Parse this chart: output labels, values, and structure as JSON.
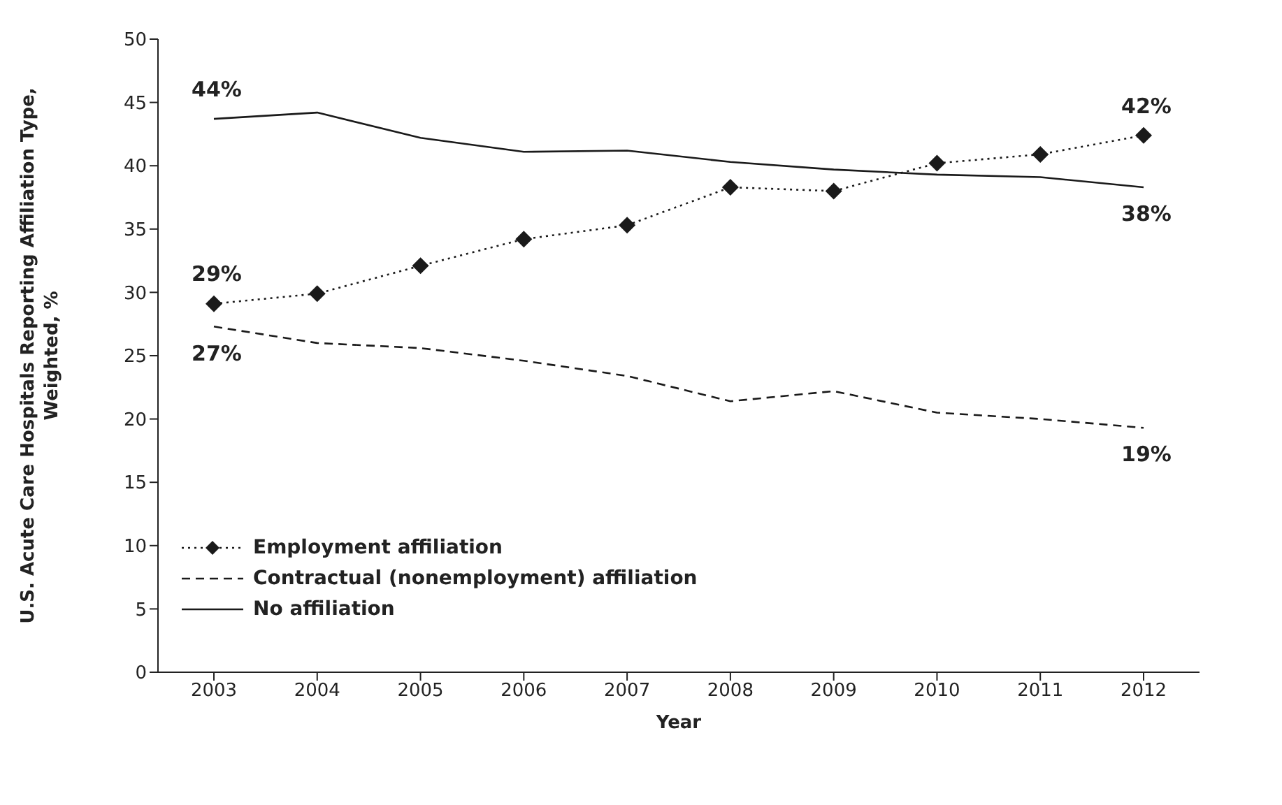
{
  "chart_data": {
    "type": "line",
    "xlabel": "Year",
    "ylabel": "U.S. Acute Care Hospitals Reporting Affiliation Type, Weighted, %",
    "categories": [
      "2003",
      "2004",
      "2005",
      "2006",
      "2007",
      "2008",
      "2009",
      "2010",
      "2011",
      "2012"
    ],
    "series": [
      {
        "name": "Employment affiliation",
        "color": "#1a1a1a",
        "line_style": "dotted",
        "marker": "diamond",
        "values": [
          29.1,
          29.9,
          32.1,
          34.2,
          35.3,
          38.3,
          38.0,
          40.2,
          40.9,
          42.4
        ]
      },
      {
        "name": "Contractual (nonemployment) affiliation",
        "color": "#1a1a1a",
        "line_style": "dashed",
        "marker": "none",
        "values": [
          27.3,
          26.0,
          25.6,
          24.6,
          23.4,
          21.4,
          22.2,
          20.5,
          20.0,
          19.3
        ]
      },
      {
        "name": "No affiliation",
        "color": "#1a1a1a",
        "line_style": "solid",
        "marker": "none",
        "values": [
          43.7,
          44.2,
          42.2,
          41.1,
          41.2,
          40.3,
          39.7,
          39.3,
          39.1,
          38.3
        ]
      }
    ],
    "annotations": [
      {
        "text": "44%",
        "x": "2003",
        "y": 43.7
      },
      {
        "text": "29%",
        "x": "2003",
        "y": 29.1
      },
      {
        "text": "27%",
        "x": "2003",
        "y": 27.3
      },
      {
        "text": "42%",
        "x": "2012",
        "y": 42.4
      },
      {
        "text": "38%",
        "x": "2012",
        "y": 38.3
      },
      {
        "text": "19%",
        "x": "2012",
        "y": 19.3
      }
    ],
    "ylim": [
      0,
      50
    ],
    "yticks": [
      0,
      5,
      10,
      15,
      20,
      25,
      30,
      35,
      40,
      45,
      50
    ],
    "grid": false,
    "legend": "bottom left"
  }
}
